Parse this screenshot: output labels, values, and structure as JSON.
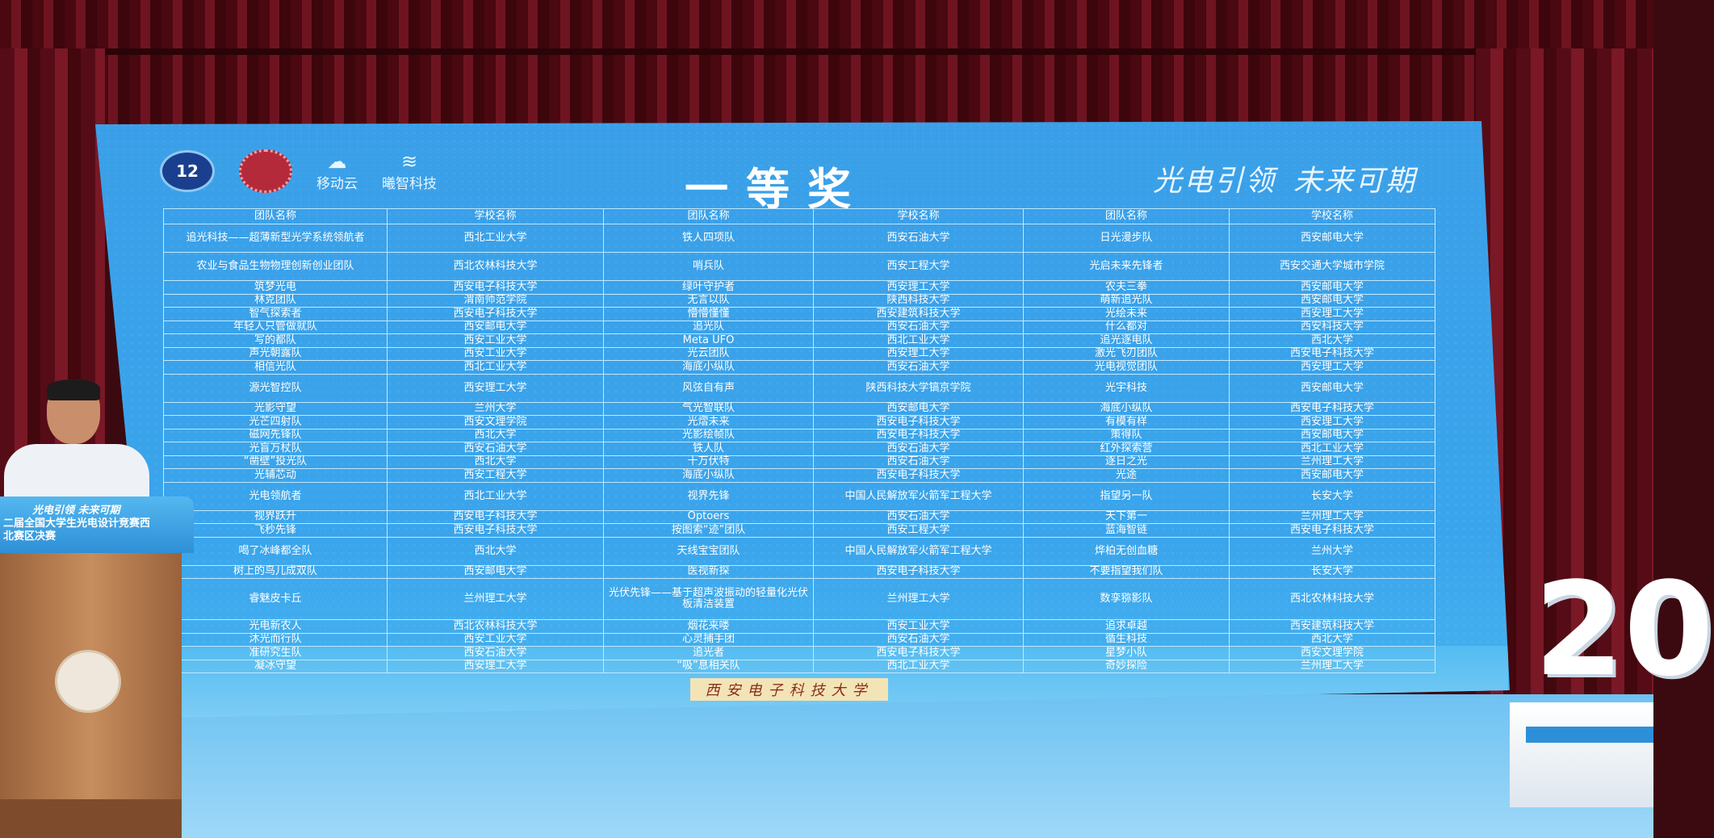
{
  "screen": {
    "award_title": "一等奖",
    "slogan": [
      "光电引领",
      "未来可期"
    ],
    "logos": [
      {
        "name": "competition-emblem",
        "text": "12"
      },
      {
        "name": "university-seal"
      },
      {
        "name": "移动云",
        "icon": "cloud-icon"
      },
      {
        "name": "曦智科技",
        "icon": "wave-icon"
      }
    ],
    "footer_label": "西安电子科技大学"
  },
  "table": {
    "headers": [
      "团队名称",
      "学校名称",
      "团队名称",
      "学校名称",
      "团队名称",
      "学校名称"
    ],
    "rows": [
      {
        "h": 2,
        "cells": [
          "追光科技——超薄新型光学系统领航者",
          "西北工业大学",
          "铁人四项队",
          "西安石油大学",
          "日光漫步队",
          "西安邮电大学"
        ]
      },
      {
        "h": 2,
        "cells": [
          "农业与食品生物物理创新创业团队",
          "西北农林科技大学",
          "哨兵队",
          "西安工程大学",
          "光启未来先锋者",
          "西安交通大学城市学院"
        ]
      },
      {
        "h": 1,
        "cells": [
          "筑梦光电",
          "西安电子科技大学",
          "绿叶守护者",
          "西安理工大学",
          "农夫三拳",
          "西安邮电大学"
        ]
      },
      {
        "h": 1,
        "cells": [
          "林克团队",
          "渭南师范学院",
          "无言以队",
          "陕西科技大学",
          "萌新追光队",
          "西安邮电大学"
        ]
      },
      {
        "h": 1,
        "cells": [
          "智气探索者",
          "西安电子科技大学",
          "懵懵懂懂",
          "西安建筑科技大学",
          "光绘未来",
          "西安理工大学"
        ]
      },
      {
        "h": 1,
        "cells": [
          "年轻人只管做就队",
          "西安邮电大学",
          "追光队",
          "西安石油大学",
          "什么都对",
          "西安科技大学"
        ]
      },
      {
        "h": 1,
        "cells": [
          "写的都队",
          "西安工业大学",
          "Meta UFO",
          "西北工业大学",
          "追光逐电队",
          "西北大学"
        ]
      },
      {
        "h": 1,
        "cells": [
          "声光朝露队",
          "西安工业大学",
          "光云团队",
          "西安理工大学",
          "激光飞刃团队",
          "西安电子科技大学"
        ]
      },
      {
        "h": 1,
        "cells": [
          "相信光队",
          "西北工业大学",
          "海底小纵队",
          "西安石油大学",
          "光电视觉团队",
          "西安理工大学"
        ]
      },
      {
        "h": 2,
        "cells": [
          "源光智控队",
          "西安理工大学",
          "风弦自有声",
          "陕西科技大学镐京学院",
          "光宇科技",
          "西安邮电大学"
        ]
      },
      {
        "h": 1,
        "cells": [
          "光影守望",
          "兰州大学",
          "气光智联队",
          "西安邮电大学",
          "海底小纵队",
          "西安电子科技大学"
        ]
      },
      {
        "h": 1,
        "cells": [
          "光芒四射队",
          "西安文理学院",
          "光熠未来",
          "西安电子科技大学",
          "有模有样",
          "西安理工大学"
        ]
      },
      {
        "h": 1,
        "cells": [
          "磁网先锋队",
          "西北大学",
          "光影绘帧队",
          "西安电子科技大学",
          "策得队",
          "西安邮电大学"
        ]
      },
      {
        "h": 1,
        "cells": [
          "光盲万杖队",
          "西安石油大学",
          "铁人队",
          "西安石油大学",
          "红外探索营",
          "西北工业大学"
        ]
      },
      {
        "h": 1,
        "cells": [
          "“凿壁”投光队",
          "西北大学",
          "十万伏特",
          "西安石油大学",
          "逐日之光",
          "兰州理工大学"
        ]
      },
      {
        "h": 1,
        "cells": [
          "光辅芯动",
          "西安工程大学",
          "海底小纵队",
          "西安电子科技大学",
          "光途",
          "西安邮电大学"
        ]
      },
      {
        "h": 2,
        "cells": [
          "光电领航者",
          "西北工业大学",
          "视界先锋",
          "中国人民解放军火箭军工程大学",
          "指望另一队",
          "长安大学"
        ]
      },
      {
        "h": 1,
        "cells": [
          "视界跃升",
          "西安电子科技大学",
          "Optoers",
          "西安石油大学",
          "天下第一",
          "兰州理工大学"
        ]
      },
      {
        "h": 1,
        "cells": [
          "飞秒先锋",
          "西安电子科技大学",
          "按图索“迹”团队",
          "西安工程大学",
          "蓝海智链",
          "西安电子科技大学"
        ]
      },
      {
        "h": 2,
        "cells": [
          "喝了冰峰都全队",
          "西北大学",
          "天线宝宝团队",
          "中国人民解放军火箭军工程大学",
          "烨柏无创血糖",
          "兰州大学"
        ]
      },
      {
        "h": 1,
        "cells": [
          "树上的鸟儿成双队",
          "西安邮电大学",
          "医视新探",
          "西安电子科技大学",
          "不要指望我们队",
          "长安大学"
        ]
      },
      {
        "h": 3,
        "cells": [
          "睿魅皮卡丘",
          "兰州理工大学",
          "光伏先锋——基于超声波振动的轻量化光伏板清洁装置",
          "兰州理工大学",
          "数孪猕影队",
          "西北农林科技大学"
        ]
      },
      {
        "h": 1,
        "cells": [
          "光电新农人",
          "西北农林科技大学",
          "烟花来喽",
          "西安工业大学",
          "追求卓越",
          "西安建筑科技大学"
        ]
      },
      {
        "h": 1,
        "cells": [
          "沐光而行队",
          "西安工业大学",
          "心灵捕手团",
          "西安石油大学",
          "循生科技",
          "西北大学"
        ]
      },
      {
        "h": 1,
        "cells": [
          "准研究生队",
          "西安石油大学",
          "追光者",
          "西安电子科技大学",
          "星梦小队",
          "西安文理学院"
        ]
      },
      {
        "h": 1,
        "cells": [
          "凝冰守望",
          "西安理工大学",
          "“吸”息相关队",
          "西北工业大学",
          "奇妙探险",
          "兰州理工大学"
        ]
      }
    ]
  },
  "podium": {
    "slogan": "光电引领 未来可期",
    "banner": "二届全国大学生光电设计竞赛西北赛区决赛"
  },
  "sculpture": {
    "text": "20"
  },
  "colors": {
    "screen": "#3aa5ec",
    "curtain": "#5a0f18",
    "table_line": "#bfe9ff",
    "podium": "#b07a50"
  }
}
